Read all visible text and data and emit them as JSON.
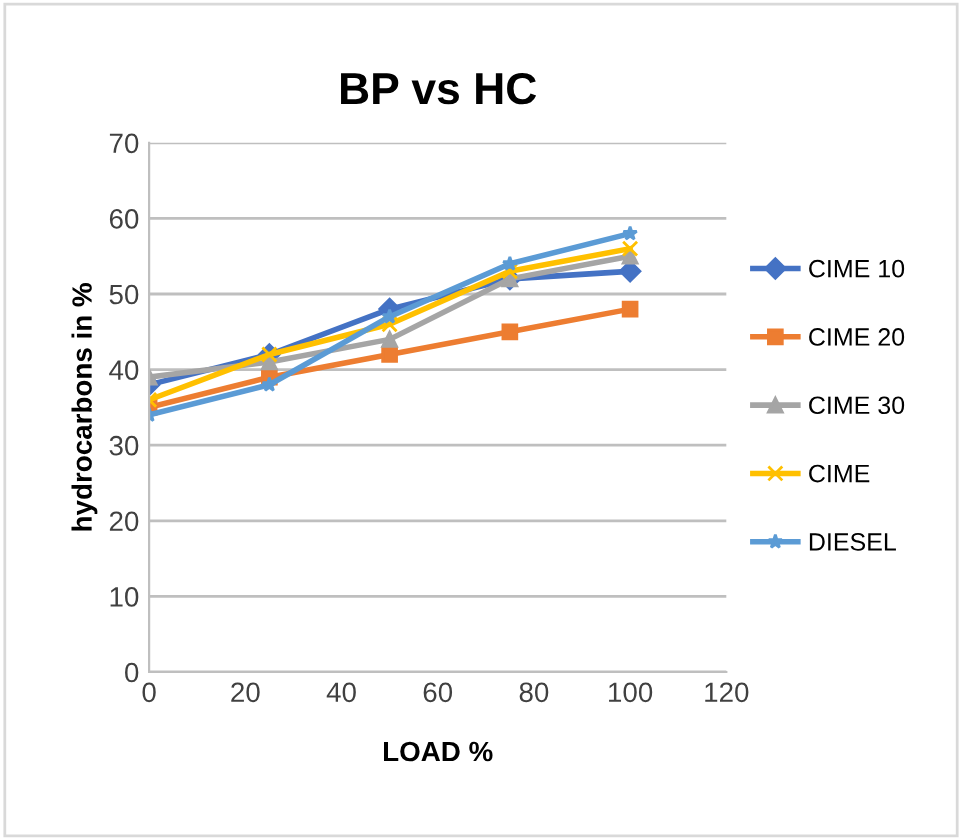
{
  "chart_data": {
    "type": "line",
    "title": "BP vs HC",
    "xlabel": "LOAD %",
    "ylabel": "hydrocarbons in %",
    "x": [
      0,
      25,
      50,
      75,
      100
    ],
    "series": [
      {
        "name": "CIME 10",
        "color": "#4472c4",
        "marker": "diamond",
        "values": [
          38,
          42,
          48,
          52,
          53
        ]
      },
      {
        "name": "CIME 20",
        "color": "#ed7d31",
        "marker": "square",
        "values": [
          35,
          39,
          42,
          45,
          48
        ]
      },
      {
        "name": "CIME 30",
        "color": "#a5a5a5",
        "marker": "triangle",
        "values": [
          39,
          41,
          44,
          52,
          55
        ]
      },
      {
        "name": "CIME",
        "color": "#ffc000",
        "marker": "cross",
        "values": [
          36,
          42,
          46,
          53,
          56
        ]
      },
      {
        "name": "DIESEL",
        "color": "#5b9bd5",
        "marker": "star",
        "values": [
          34,
          38,
          47,
          54,
          58
        ]
      }
    ],
    "xlim": [
      0,
      120
    ],
    "xticks": [
      0,
      20,
      40,
      60,
      80,
      100,
      120
    ],
    "ylim": [
      0,
      70
    ],
    "yticks": [
      0,
      10,
      20,
      30,
      40,
      50,
      60,
      70
    ],
    "grid": "y",
    "legend": "right"
  }
}
